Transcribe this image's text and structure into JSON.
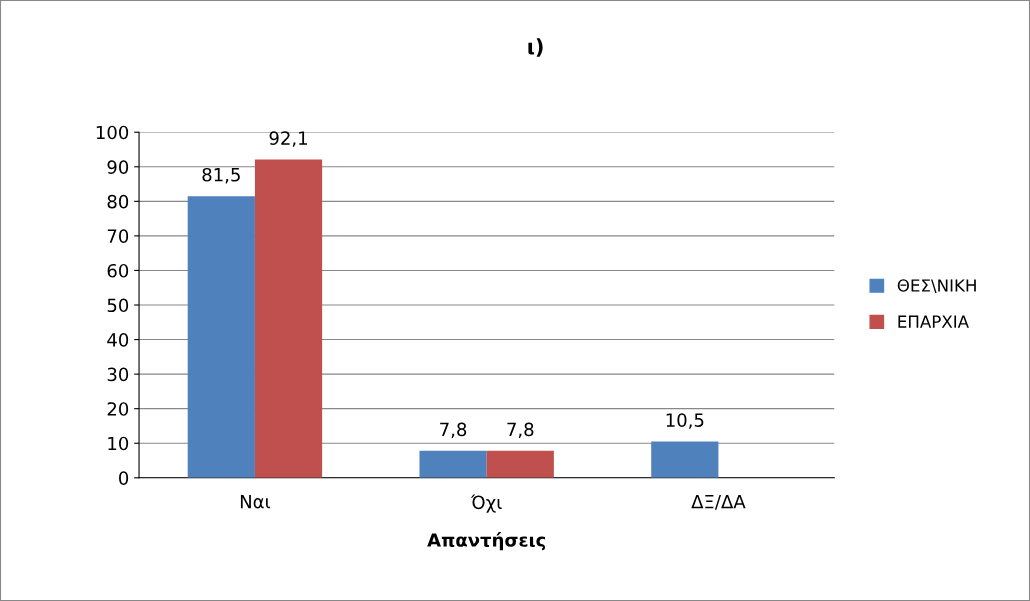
{
  "chart_data": {
    "type": "bar",
    "title": "ι)",
    "xlabel": "Απαντήσεις",
    "categories": [
      "Ναι",
      "Όχι",
      "ΔΞ/ΔΑ"
    ],
    "series": [
      {
        "name": "ΘΕΣ\\ΝΙΚΗ",
        "color": "#4f81bd",
        "values": [
          81.5,
          7.8,
          10.5
        ],
        "value_labels": [
          "81,5",
          "7,8",
          "10,5"
        ]
      },
      {
        "name": "ΕΠΑΡΧΙΑ",
        "color": "#c0504d",
        "values": [
          92.1,
          7.8,
          null
        ],
        "value_labels": [
          "92,1",
          "7,8",
          null
        ]
      }
    ],
    "ylim": [
      0,
      100
    ],
    "yticks": [
      0,
      10,
      20,
      30,
      40,
      50,
      60,
      70,
      80,
      90,
      100
    ],
    "grid": "y",
    "legend": "right"
  }
}
